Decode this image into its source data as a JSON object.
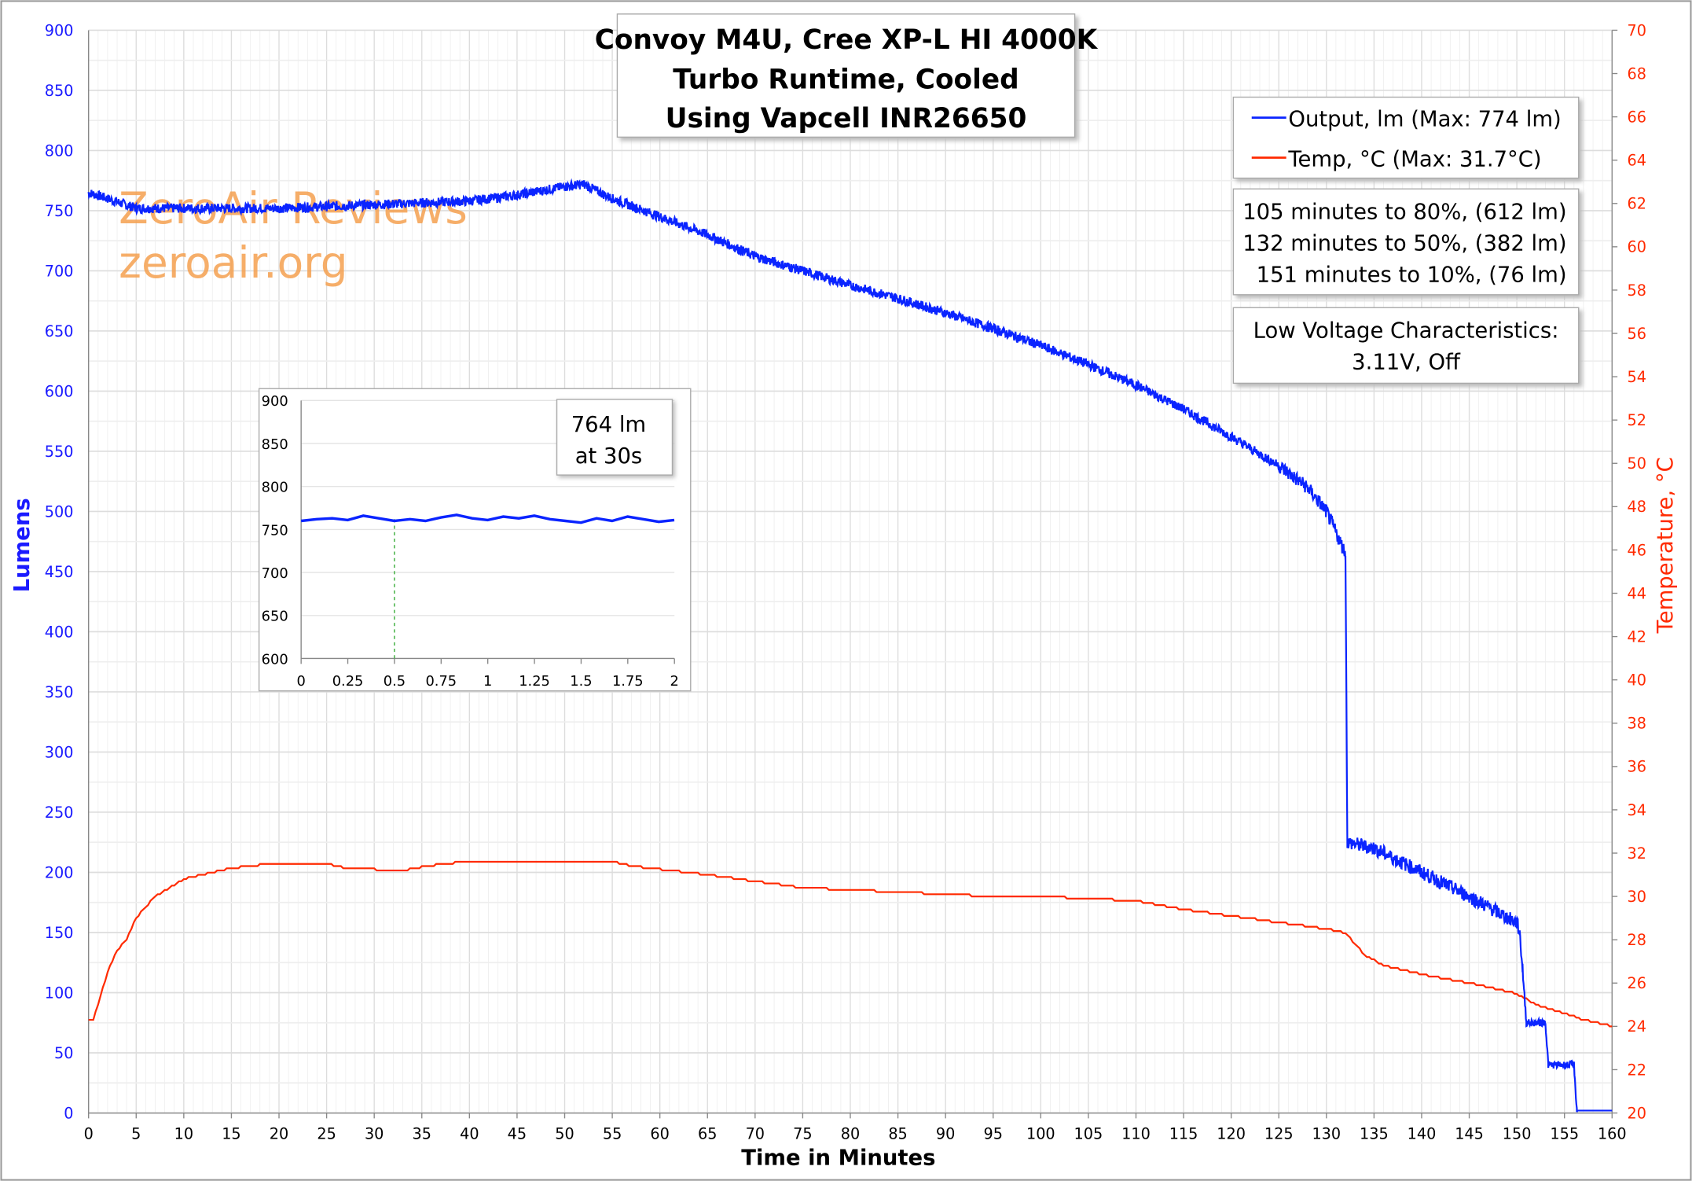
{
  "chart_data": {
    "type": "line",
    "title": [
      "Convoy M4U, Cree XP-L HI 4000K",
      "Turbo Runtime, Cooled",
      "Using Vapcell INR26650"
    ],
    "xlabel": "Time in Minutes",
    "ylabel": "Lumens",
    "y2label": "Temperature, °C",
    "xlim": [
      0,
      160
    ],
    "ylim": [
      0,
      900
    ],
    "y2lim": [
      20,
      70
    ],
    "xticks": [
      0,
      5,
      10,
      15,
      20,
      25,
      30,
      35,
      40,
      45,
      50,
      55,
      60,
      65,
      70,
      75,
      80,
      85,
      90,
      95,
      100,
      105,
      110,
      115,
      120,
      125,
      130,
      135,
      140,
      145,
      150,
      155,
      160
    ],
    "yticks": [
      0,
      50,
      100,
      150,
      200,
      250,
      300,
      350,
      400,
      450,
      500,
      550,
      600,
      650,
      700,
      750,
      800,
      850,
      900
    ],
    "y2ticks": [
      20,
      22,
      24,
      26,
      28,
      30,
      32,
      34,
      36,
      38,
      40,
      42,
      44,
      46,
      48,
      50,
      52,
      54,
      56,
      58,
      60,
      62,
      64,
      66,
      68,
      70
    ],
    "grid": true,
    "legend_placement": "top-right",
    "series": [
      {
        "name": "Output, lm (Max: 774 lm)",
        "color": "#0a24ff",
        "axis": "left",
        "x": [
          0,
          2,
          5,
          10,
          20,
          30,
          40,
          45,
          50,
          52,
          55,
          60,
          65,
          70,
          75,
          80,
          85,
          90,
          95,
          100,
          105,
          110,
          115,
          120,
          125,
          128,
          130,
          132,
          132.2,
          135,
          140,
          145,
          150,
          150.3,
          150.6,
          151,
          153,
          153.3,
          156,
          156.3,
          160
        ],
        "y": [
          765,
          760,
          752,
          752,
          752,
          755,
          758,
          763,
          770,
          772,
          760,
          745,
          730,
          712,
          700,
          688,
          677,
          665,
          652,
          638,
          622,
          605,
          585,
          562,
          538,
          520,
          500,
          465,
          225,
          220,
          200,
          180,
          158,
          150,
          120,
          75,
          75,
          40,
          40,
          2,
          2
        ]
      },
      {
        "name": "Temp, °C (Max: 31.7°C)",
        "color": "#ff2a00",
        "axis": "right",
        "x": [
          0,
          0.5,
          1,
          2,
          3,
          4,
          5,
          7,
          10,
          15,
          19,
          25,
          27,
          33,
          37,
          40,
          55,
          57,
          65,
          70,
          75,
          80,
          85,
          95,
          100,
          110,
          115,
          120,
          125,
          130,
          132,
          134,
          136,
          140,
          145,
          150,
          152,
          155,
          157,
          160
        ],
        "y": [
          24.3,
          24.3,
          25,
          26.5,
          27.5,
          28,
          29,
          30,
          30.8,
          31.3,
          31.5,
          31.5,
          31.3,
          31.2,
          31.5,
          31.6,
          31.6,
          31.4,
          31,
          30.7,
          30.4,
          30.3,
          30.2,
          30.0,
          30.0,
          29.8,
          29.4,
          29.1,
          28.8,
          28.5,
          28.3,
          27.3,
          26.8,
          26.4,
          26.0,
          25.5,
          25.0,
          24.6,
          24.3,
          24.0
        ]
      }
    ],
    "annotations": {
      "stats": [
        "105 minutes to 80%, (612 lm)",
        "132 minutes to 50%, (382 lm)",
        "151 minutes to 10%, (76 lm)"
      ],
      "low_voltage": [
        "Low Voltage Characteristics:",
        "3.11V, Off"
      ]
    },
    "inset": {
      "type": "line",
      "xlim": [
        0,
        2
      ],
      "ylim": [
        600,
        900
      ],
      "xticks": [
        "0",
        "0.25",
        "0.5",
        "0.75",
        "1",
        "1.25",
        "1.5",
        "1.75",
        "2"
      ],
      "yticks": [
        600,
        650,
        700,
        750,
        800,
        850,
        900
      ],
      "marker_x": 0.5,
      "label": [
        "764 lm",
        "at 30s"
      ],
      "x_step": 0.0833,
      "y": [
        760,
        762,
        763,
        761,
        766,
        763,
        760,
        762,
        760,
        764,
        767,
        763,
        761,
        765,
        763,
        766,
        762,
        760,
        758,
        763,
        760,
        765,
        762,
        759,
        761
      ]
    }
  },
  "watermark": [
    "ZeroAir Reviews",
    "zeroair.org"
  ]
}
